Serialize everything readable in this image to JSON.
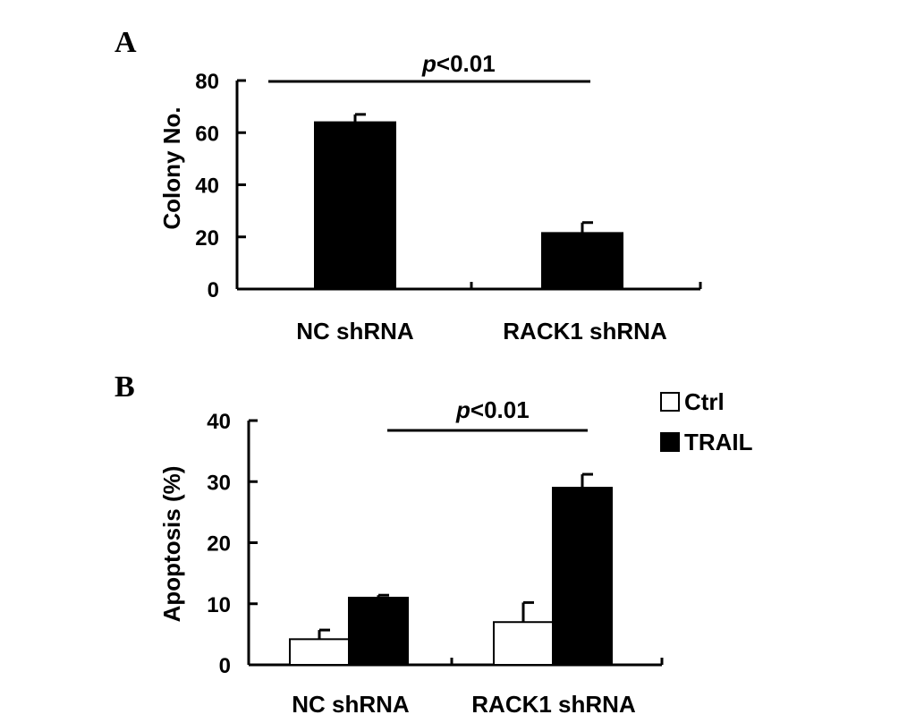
{
  "chart_data": [
    {
      "type": "bar",
      "panel": "A",
      "categories": [
        "NC shRNA",
        "RACK1 shRNA"
      ],
      "series": [
        {
          "values": [
            64,
            21.5
          ],
          "errors": [
            3,
            4
          ],
          "color": "#000000"
        }
      ],
      "ylabel": "Colony No.",
      "ylim": [
        0,
        80
      ],
      "yticks": [
        "0",
        "20",
        "40",
        "60",
        "80"
      ],
      "significance": {
        "prefix": "p",
        "text": "<0.01"
      },
      "grid": false
    },
    {
      "type": "bar",
      "panel": "B",
      "categories": [
        "NC shRNA",
        "RACK1 shRNA"
      ],
      "series": [
        {
          "name": "Ctrl",
          "values": [
            4.2,
            7
          ],
          "errors": [
            1.5,
            3.2
          ],
          "color": "#ffffff"
        },
        {
          "name": "TRAIL",
          "values": [
            11,
            29
          ],
          "errors": [
            0.4,
            2.2
          ],
          "color": "#000000"
        }
      ],
      "ylabel": "Apoptosis (%)",
      "ylim": [
        0,
        40
      ],
      "yticks": [
        "0",
        "10",
        "20",
        "30",
        "40"
      ],
      "legend": "top-right",
      "significance": {
        "prefix": "p",
        "text": "<0.01"
      },
      "grid": false
    }
  ]
}
